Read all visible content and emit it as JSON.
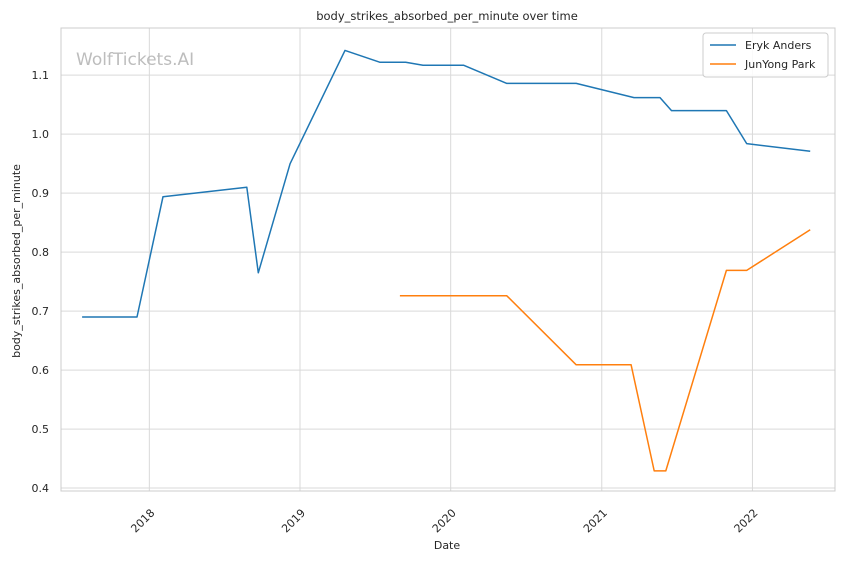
{
  "watermark": "WolfTickets.AI",
  "chart_data": {
    "type": "line",
    "title": "body_strikes_absorbed_per_minute over time",
    "xlabel": "Date",
    "ylabel": "body_strikes_absorbed_per_minute",
    "x_axis": {
      "type": "date",
      "range": [
        "2017-06-01",
        "2022-07-20"
      ],
      "ticks": [
        "2018",
        "2019",
        "2020",
        "2021",
        "2022"
      ]
    },
    "y_axis": {
      "range": [
        0.395,
        1.18
      ],
      "ticks": [
        "0.4",
        "0.5",
        "0.6",
        "0.7",
        "0.8",
        "0.9",
        "1.0",
        "1.1"
      ]
    },
    "grid": true,
    "legend_position": "top-right",
    "series": [
      {
        "name": "Eryk Anders",
        "color": "#1f77b4",
        "points": [
          [
            "2017-07-22",
            0.69
          ],
          [
            "2017-12-02",
            0.69
          ],
          [
            "2018-02-03",
            0.894
          ],
          [
            "2018-08-25",
            0.91
          ],
          [
            "2018-09-22",
            0.765
          ],
          [
            "2018-12-08",
            0.95
          ],
          [
            "2019-04-20",
            1.142
          ],
          [
            "2019-07-13",
            1.122
          ],
          [
            "2019-09-14",
            1.122
          ],
          [
            "2019-10-26",
            1.117
          ],
          [
            "2020-02-01",
            1.117
          ],
          [
            "2020-05-16",
            1.086
          ],
          [
            "2020-10-31",
            1.086
          ],
          [
            "2021-03-20",
            1.062
          ],
          [
            "2021-05-22",
            1.062
          ],
          [
            "2021-06-19",
            1.04
          ],
          [
            "2021-10-30",
            1.04
          ],
          [
            "2021-12-18",
            0.984
          ],
          [
            "2022-05-21",
            0.971
          ]
        ]
      },
      {
        "name": "JunYong Park",
        "color": "#ff7f0e",
        "points": [
          [
            "2019-08-31",
            0.726
          ],
          [
            "2020-05-16",
            0.726
          ],
          [
            "2020-10-31",
            0.609
          ],
          [
            "2021-03-13",
            0.609
          ],
          [
            "2021-05-08",
            0.429
          ],
          [
            "2021-06-05",
            0.429
          ],
          [
            "2021-10-30",
            0.769
          ],
          [
            "2021-12-18",
            0.769
          ],
          [
            "2022-05-21",
            0.838
          ]
        ]
      }
    ]
  }
}
